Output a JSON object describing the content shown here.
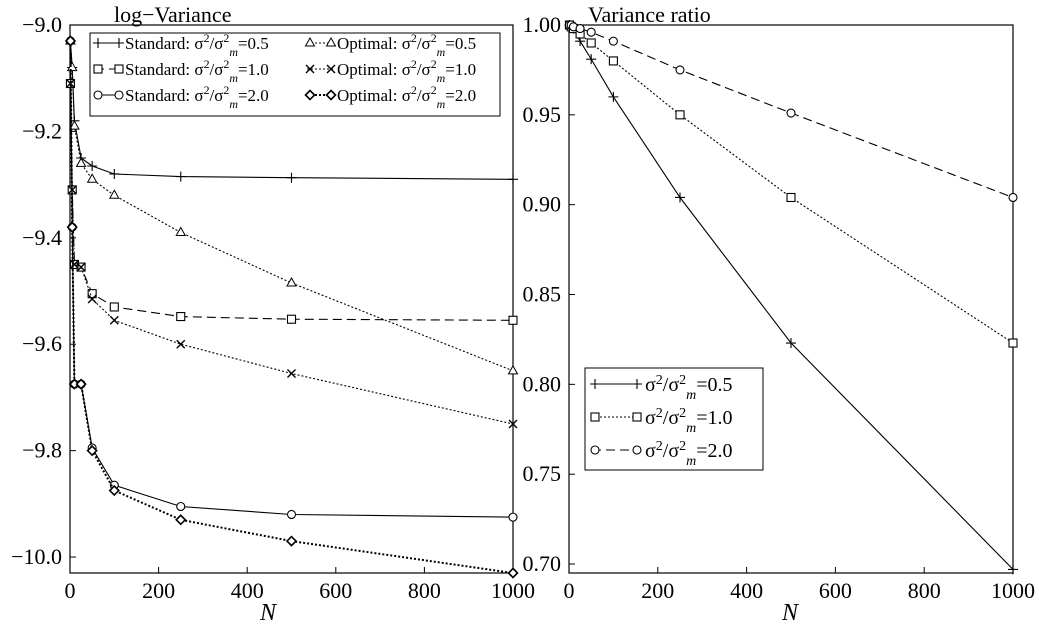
{
  "chart_data": [
    {
      "type": "line",
      "title": "log−Variance",
      "xlabel": "N",
      "ylabel": "",
      "xlim": [
        0,
        1000
      ],
      "ylim": [
        -10.03,
        -9.0
      ],
      "xticks": [
        0,
        200,
        400,
        600,
        800,
        1000
      ],
      "yticks": [
        -9.0,
        -9.2,
        -9.4,
        -9.6,
        -9.8,
        -10.0
      ],
      "ytick_labels": [
        "−9.0",
        "−9.2",
        "−9.4",
        "−9.6",
        "−9.8",
        "−10.0"
      ],
      "legend_position": "top",
      "series": [
        {
          "name": "Standard: σ²/σ²m=0.5",
          "legend_prefix": "Standard: ",
          "ratio": "0.5",
          "marker": "plus",
          "dash": "solid",
          "x": [
            1,
            5,
            10,
            25,
            50,
            100,
            250,
            500,
            1000
          ],
          "y": [
            -9.03,
            -9.08,
            -9.18,
            -9.25,
            -9.265,
            -9.28,
            -9.285,
            -9.287,
            -9.29
          ]
        },
        {
          "name": "Standard: σ²/σ²m=1.0",
          "legend_prefix": "Standard: ",
          "ratio": "1.0",
          "marker": "square",
          "dash": "dashed",
          "x": [
            1,
            5,
            10,
            25,
            50,
            100,
            250,
            500,
            1000
          ],
          "y": [
            -9.11,
            -9.31,
            -9.45,
            -9.455,
            -9.505,
            -9.53,
            -9.548,
            -9.553,
            -9.555
          ]
        },
        {
          "name": "Standard: σ²/σ²m=2.0",
          "legend_prefix": "Standard: ",
          "ratio": "2.0",
          "marker": "circle",
          "dash": "solid",
          "x": [
            1,
            5,
            10,
            25,
            50,
            100,
            250,
            500,
            1000
          ],
          "y": [
            -9.03,
            -9.38,
            -9.675,
            -9.675,
            -9.795,
            -9.865,
            -9.905,
            -9.92,
            -9.925
          ]
        },
        {
          "name": "Optimal: σ²/σ²m=0.5",
          "legend_prefix": "Optimal: ",
          "ratio": "0.5",
          "marker": "triangle",
          "dash": "dotted",
          "x": [
            1,
            5,
            10,
            25,
            50,
            100,
            250,
            500,
            1000
          ],
          "y": [
            -9.03,
            -9.08,
            -9.19,
            -9.26,
            -9.29,
            -9.32,
            -9.39,
            -9.485,
            -9.65
          ]
        },
        {
          "name": "Optimal: σ²/σ²m=1.0",
          "legend_prefix": "Optimal: ",
          "ratio": "1.0",
          "marker": "cross",
          "dash": "dotted",
          "x": [
            1,
            5,
            10,
            25,
            50,
            100,
            250,
            500,
            1000
          ],
          "y": [
            -9.11,
            -9.31,
            -9.45,
            -9.455,
            -9.515,
            -9.555,
            -9.6,
            -9.655,
            -9.75
          ]
        },
        {
          "name": "Optimal: σ²/σ²m=2.0",
          "legend_prefix": "Optimal: ",
          "ratio": "2.0",
          "marker": "diamond",
          "dash": "bolddotted",
          "x": [
            1,
            5,
            10,
            25,
            50,
            100,
            250,
            500,
            1000
          ],
          "y": [
            -9.03,
            -9.38,
            -9.675,
            -9.675,
            -9.8,
            -9.875,
            -9.93,
            -9.97,
            -10.03
          ]
        }
      ]
    },
    {
      "type": "line",
      "title": "Variance ratio",
      "xlabel": "N",
      "ylabel": "",
      "xlim": [
        0,
        1000
      ],
      "ylim": [
        0.695,
        1.0
      ],
      "xticks": [
        0,
        200,
        400,
        600,
        800,
        1000
      ],
      "yticks": [
        0.7,
        0.75,
        0.8,
        0.85,
        0.9,
        0.95,
        1.0
      ],
      "ytick_labels": [
        "0.70",
        "0.75",
        "0.80",
        "0.85",
        "0.90",
        "0.95",
        "1.00"
      ],
      "legend_position": "bottom-left",
      "series": [
        {
          "name": "σ²/σ²m=0.5",
          "ratio": "0.5",
          "marker": "plus",
          "dash": "solid",
          "x": [
            1,
            5,
            10,
            25,
            50,
            100,
            250,
            500,
            1000
          ],
          "y": [
            1.0,
            0.999,
            0.998,
            0.991,
            0.981,
            0.96,
            0.904,
            0.823,
            0.697
          ]
        },
        {
          "name": "σ²/σ²m=1.0",
          "ratio": "1.0",
          "marker": "square",
          "dash": "dotted",
          "x": [
            1,
            5,
            10,
            25,
            50,
            100,
            250,
            500,
            1000
          ],
          "y": [
            1.0,
            0.999,
            0.998,
            0.995,
            0.99,
            0.98,
            0.95,
            0.904,
            0.823
          ]
        },
        {
          "name": "σ²/σ²m=2.0",
          "ratio": "2.0",
          "marker": "circle",
          "dash": "dashed",
          "x": [
            1,
            5,
            10,
            25,
            50,
            100,
            250,
            500,
            1000
          ],
          "y": [
            1.0,
            1.0,
            0.999,
            0.998,
            0.996,
            0.991,
            0.975,
            0.951,
            0.904
          ]
        }
      ]
    }
  ]
}
